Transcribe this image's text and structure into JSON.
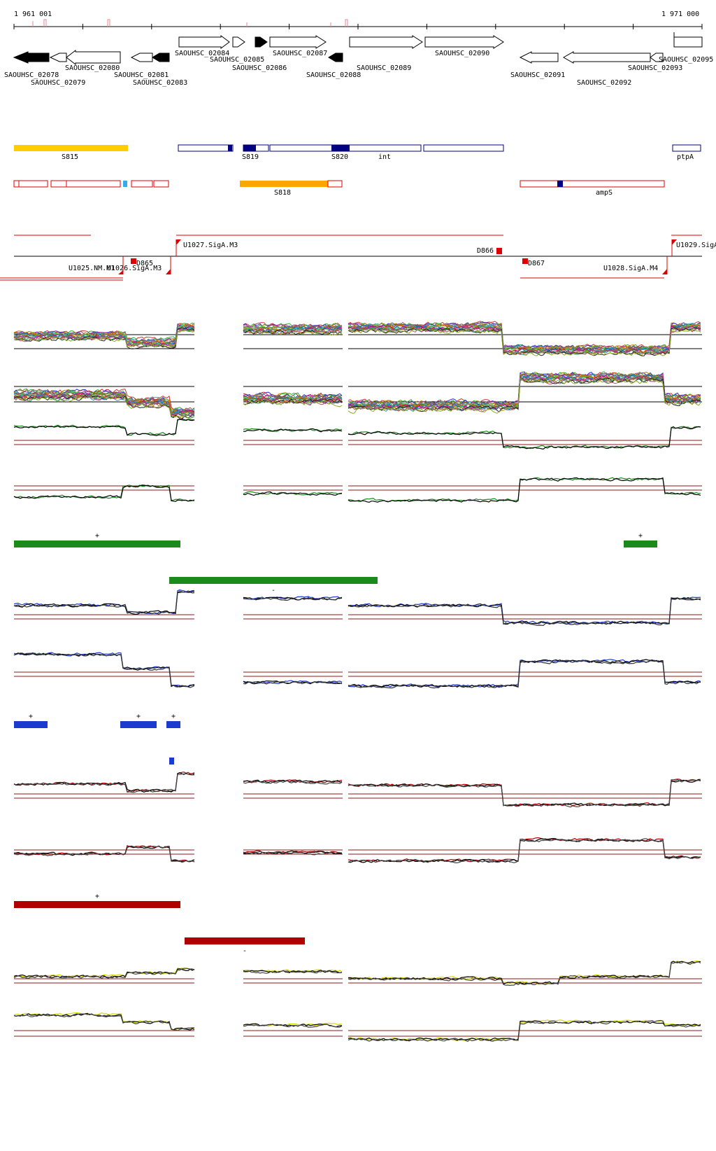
{
  "coords": {
    "start": "1 961 001",
    "end": "1 971 000"
  },
  "colors": {
    "green": "#1a8a1a",
    "blue": "#1a3ad0",
    "red": "#b00000",
    "yellow": "#d8d800",
    "orange": "#ffa500",
    "gold": "#ffcc00",
    "navy": "#000080",
    "cyan": "#33aaee",
    "segred": "#dd0000",
    "hline": "#8b1a1a"
  },
  "genes": [
    {
      "label": "SAOUHSC_02078"
    },
    {
      "label": "SAOUHSC_02079"
    },
    {
      "label": "SAOUHSC_02080"
    },
    {
      "label": "SAOUHSC_02081"
    },
    {
      "label": "SAOUHSC_02083"
    },
    {
      "label": "SAOUHSC_02084"
    },
    {
      "label": "SAOUHSC_02085"
    },
    {
      "label": "SAOUHSC_02086"
    },
    {
      "label": "SAOUHSC_02087"
    },
    {
      "label": "SAOUHSC_02088"
    },
    {
      "label": "SAOUHSC_02089"
    },
    {
      "label": "SAOUHSC_02090"
    },
    {
      "label": "SAOUHSC_02091"
    },
    {
      "label": "SAOUHSC_02092"
    },
    {
      "label": "SAOUHSC_02093"
    },
    {
      "label": "SAOUHSC_02095"
    }
  ],
  "features_plus": [
    {
      "label": "S815"
    },
    {
      "label": "S819"
    },
    {
      "label": "S820"
    },
    {
      "label": "int"
    },
    {
      "label": "ptpA"
    }
  ],
  "features_minus": [
    {
      "label": "S818"
    },
    {
      "label": "ampS"
    }
  ],
  "segments": [
    {
      "label": "U1027.SigA.M3"
    },
    {
      "label": "U1029.SigA"
    },
    {
      "label": "D866"
    },
    {
      "label": "D865"
    },
    {
      "label": "U1025.NM.M1"
    },
    {
      "label": "U1026.SigA.M3"
    },
    {
      "label": "D867"
    },
    {
      "label": "U1028.SigA.M4"
    }
  ],
  "strand_marks": {
    "plus": "+",
    "minus": "-"
  }
}
